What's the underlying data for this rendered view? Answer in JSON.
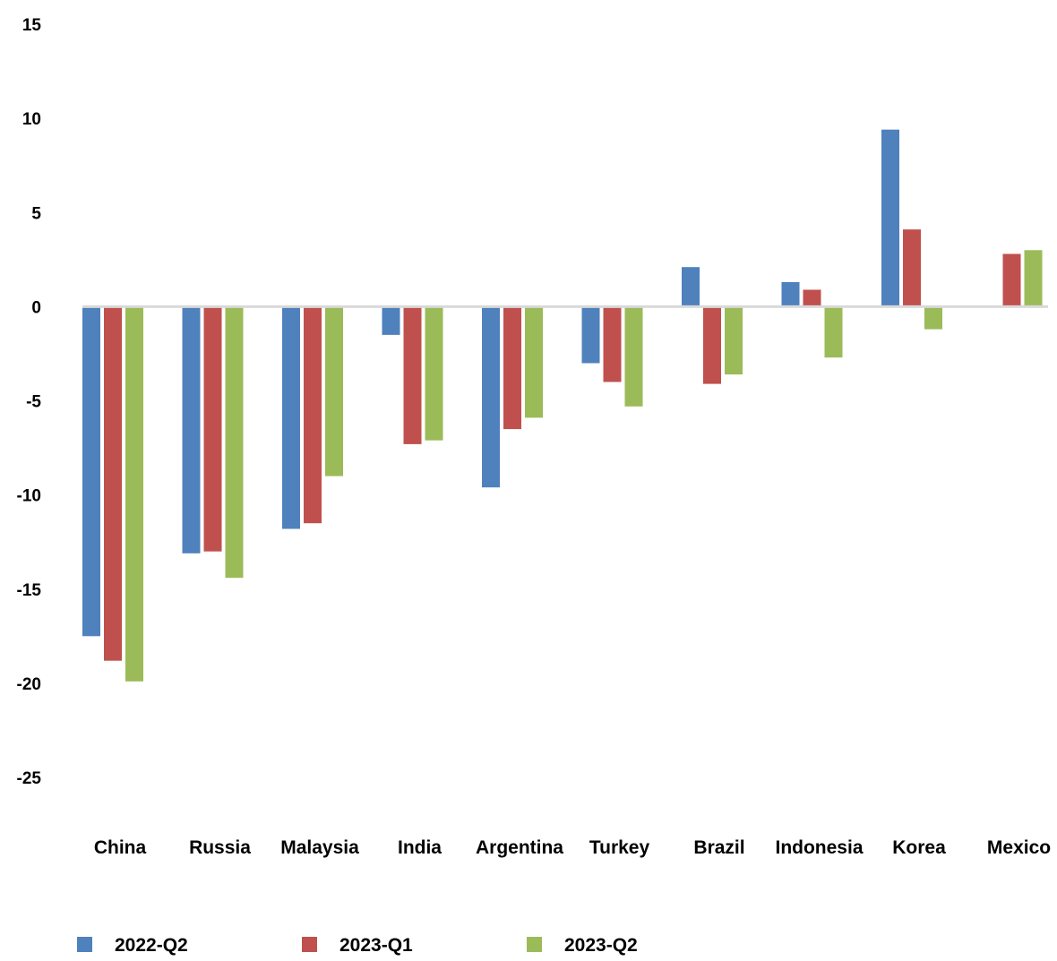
{
  "chart_data": {
    "type": "bar",
    "title": "",
    "xlabel": "",
    "ylabel": "",
    "ylim": [
      -25,
      15
    ],
    "yticks": [
      15,
      10,
      5,
      0,
      -5,
      -10,
      -15,
      -20,
      -25
    ],
    "grid": false,
    "legend_position": "bottom",
    "categories": [
      "China",
      "Russia",
      "Malaysia",
      "India",
      "Argentina",
      "Turkey",
      "Brazil",
      "Indonesia",
      "Korea",
      "Mexico"
    ],
    "series": [
      {
        "name": "2022-Q2",
        "color": "#4f81bd",
        "values": [
          -17.5,
          -13.1,
          -11.8,
          -1.5,
          -9.6,
          -3.0,
          2.1,
          1.3,
          9.4,
          null
        ]
      },
      {
        "name": "2023-Q1",
        "color": "#c0504d",
        "values": [
          -18.8,
          -13.0,
          -11.5,
          -7.3,
          -6.5,
          -4.0,
          -4.1,
          0.9,
          4.1,
          2.8
        ]
      },
      {
        "name": "2023-Q2",
        "color": "#9bbb59",
        "values": [
          -19.9,
          -14.4,
          -9.0,
          -7.1,
          -5.9,
          -5.3,
          -3.6,
          -2.7,
          -1.2,
          3.0
        ]
      }
    ]
  }
}
